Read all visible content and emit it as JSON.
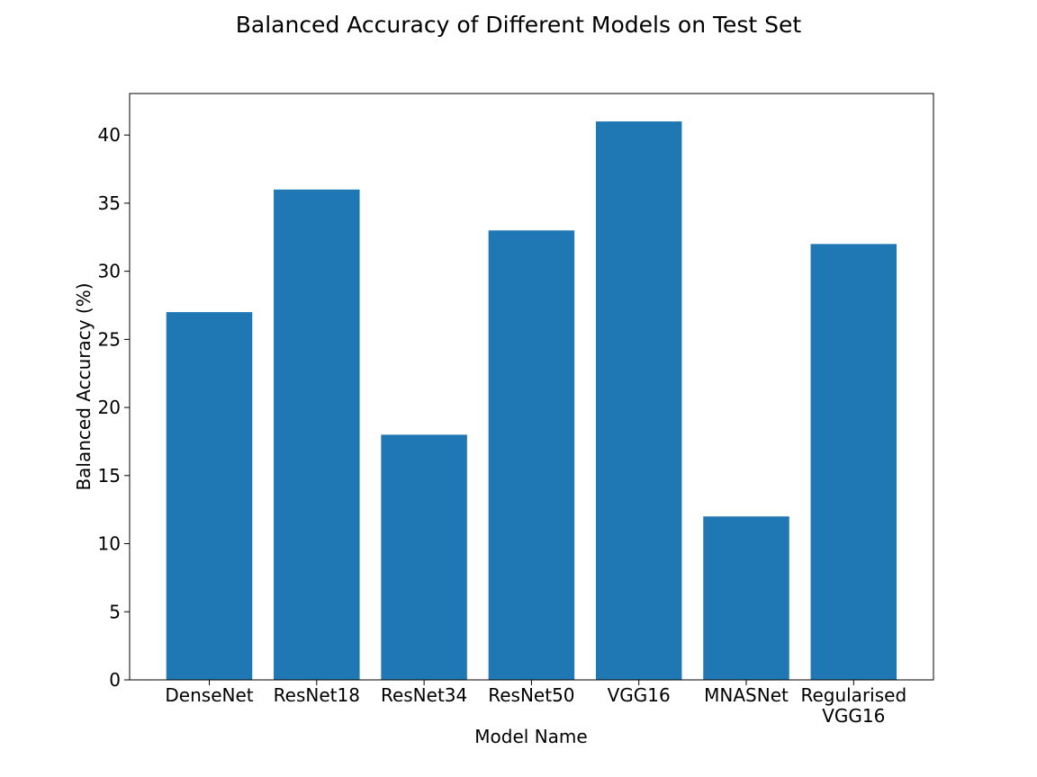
{
  "chart_data": {
    "type": "bar",
    "title": "Balanced Accuracy of Different Models on Test Set",
    "xlabel": "Model Name",
    "ylabel": "Balanced Accuracy (%)",
    "categories": [
      "DenseNet",
      "ResNet18",
      "ResNet34",
      "ResNet50",
      "VGG16",
      "MNASNet",
      "Regularised\nVGG16"
    ],
    "values": [
      27,
      36,
      18,
      33,
      41,
      12,
      32
    ],
    "ylim": [
      0,
      43.05
    ],
    "yticks": [
      0,
      5,
      10,
      15,
      20,
      25,
      30,
      35,
      40
    ],
    "grid": false,
    "legend": "none",
    "bar_color": "#1f77b4"
  }
}
